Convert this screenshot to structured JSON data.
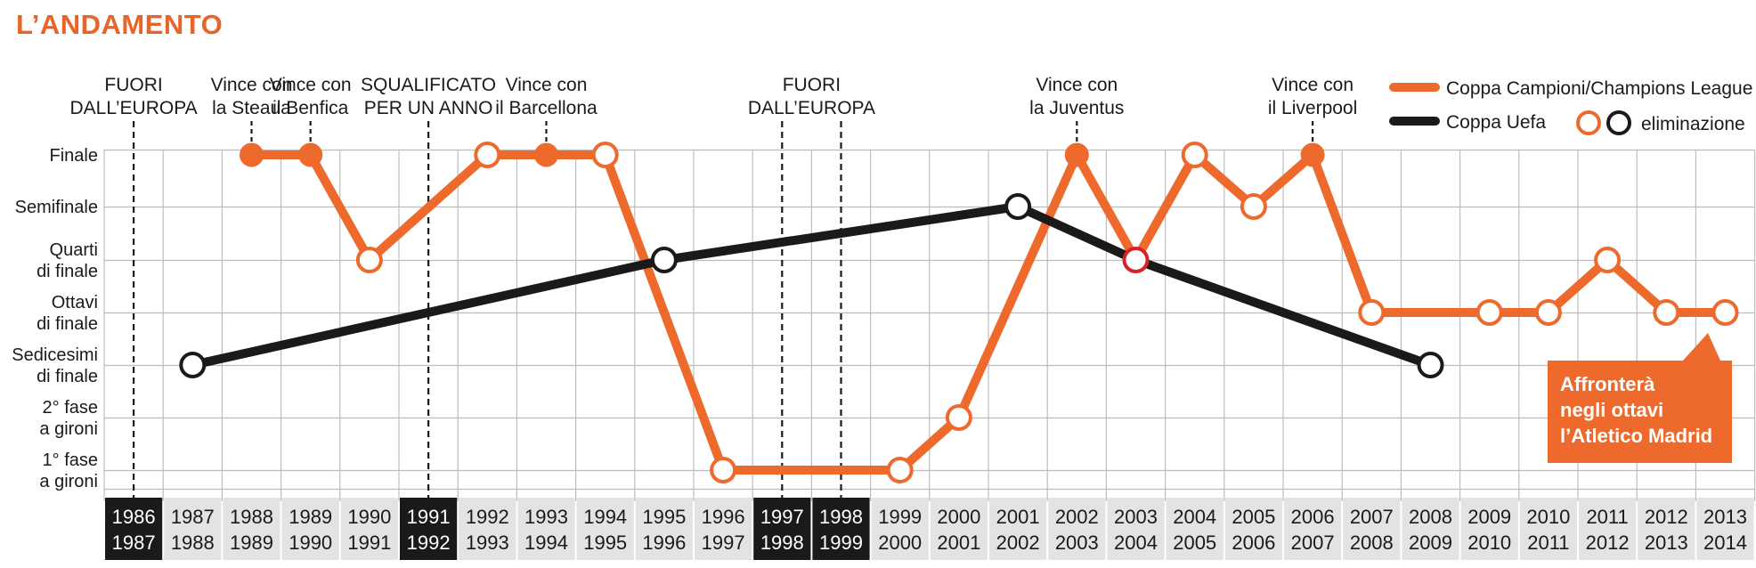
{
  "chart_data": {
    "type": "line",
    "title": "L’ANDAMENTO",
    "levels": [
      [
        "1° fase",
        "a gironi"
      ],
      [
        "2° fase",
        "a gironi"
      ],
      [
        "Sedicesimi",
        "di finale"
      ],
      [
        "Ottavi",
        "di finale"
      ],
      [
        "Quarti",
        "di finale"
      ],
      [
        "Semifinale"
      ],
      [
        "Finale"
      ]
    ],
    "seasons": [
      [
        "1986",
        "1987"
      ],
      [
        "1987",
        "1988"
      ],
      [
        "1988",
        "1989"
      ],
      [
        "1989",
        "1990"
      ],
      [
        "1990",
        "1991"
      ],
      [
        "1991",
        "1992"
      ],
      [
        "1992",
        "1993"
      ],
      [
        "1993",
        "1994"
      ],
      [
        "1994",
        "1995"
      ],
      [
        "1995",
        "1996"
      ],
      [
        "1996",
        "1997"
      ],
      [
        "1997",
        "1998"
      ],
      [
        "1998",
        "1999"
      ],
      [
        "1999",
        "2000"
      ],
      [
        "2000",
        "2001"
      ],
      [
        "2001",
        "2002"
      ],
      [
        "2002",
        "2003"
      ],
      [
        "2003",
        "2004"
      ],
      [
        "2004",
        "2005"
      ],
      [
        "2005",
        "2006"
      ],
      [
        "2006",
        "2007"
      ],
      [
        "2007",
        "2008"
      ],
      [
        "2008",
        "2009"
      ],
      [
        "2009",
        "2010"
      ],
      [
        "2010",
        "2011"
      ],
      [
        "2011",
        "2012"
      ],
      [
        "2012",
        "2013"
      ],
      [
        "2013",
        "2014"
      ]
    ],
    "highlighted_seasons": [
      0,
      5,
      11,
      12
    ],
    "series": [
      {
        "name": "Coppa Campioni/Champions League",
        "color": "#ee6a2c",
        "segments": [
          [
            [
              2,
              6,
              "won"
            ],
            [
              3,
              6,
              "won"
            ],
            [
              4,
              4,
              "out"
            ],
            [
              6,
              6,
              "out"
            ],
            [
              7,
              6,
              "won"
            ],
            [
              8,
              6,
              "out"
            ],
            [
              10,
              0,
              "out"
            ],
            [
              11,
              0,
              "none"
            ],
            [
              12,
              0,
              "none"
            ],
            [
              13,
              0,
              "out"
            ],
            [
              14,
              1,
              "out"
            ],
            [
              16,
              6,
              "won"
            ],
            [
              17,
              4,
              "out"
            ],
            [
              18,
              6,
              "out"
            ],
            [
              19,
              5,
              "out"
            ],
            [
              20,
              6,
              "won"
            ],
            [
              21,
              3,
              "out"
            ],
            [
              22,
              3,
              "none"
            ],
            [
              23,
              3,
              "out"
            ],
            [
              24,
              3,
              "out"
            ],
            [
              25,
              4,
              "out"
            ],
            [
              26,
              3,
              "out"
            ],
            [
              27,
              3,
              "out"
            ]
          ]
        ]
      },
      {
        "name": "Coppa Uefa",
        "color": "#1a1a1a",
        "segments": [
          [
            [
              1,
              2,
              "out"
            ],
            [
              9,
              4,
              "out"
            ],
            [
              15,
              5,
              "out"
            ],
            [
              17,
              4,
              "none"
            ],
            [
              22,
              2,
              "out"
            ]
          ]
        ]
      }
    ],
    "annotations": [
      {
        "season": 0,
        "lines": [
          "FUORI",
          "DALL’EUROPA"
        ]
      },
      {
        "season": 2,
        "lines": [
          "Vince con",
          "la Steaua"
        ]
      },
      {
        "season": 3,
        "lines": [
          "Vince con",
          "il Benfica"
        ]
      },
      {
        "season": 5,
        "lines": [
          "SQUALIFICATO",
          "PER UN ANNO"
        ]
      },
      {
        "season": 7,
        "lines": [
          "Vince con",
          "il Barcellona"
        ]
      },
      {
        "season": 11.5,
        "lines": [
          "FUORI",
          "DALL’EUROPA"
        ]
      },
      {
        "season": 16,
        "lines": [
          "Vince con",
          "la Juventus"
        ]
      },
      {
        "season": 20,
        "lines": [
          "Vince con",
          "il Liverpool"
        ]
      }
    ],
    "legend": {
      "position": "top-right",
      "champions": "Coppa Campioni/Champions League",
      "uefa": "Coppa Uefa",
      "elimination": "eliminazione"
    },
    "callout": {
      "lines": [
        "Affronterà",
        "negli ottavi",
        "l’Atletico Madrid"
      ],
      "color": "#ee6a2c",
      "season": 27
    }
  }
}
